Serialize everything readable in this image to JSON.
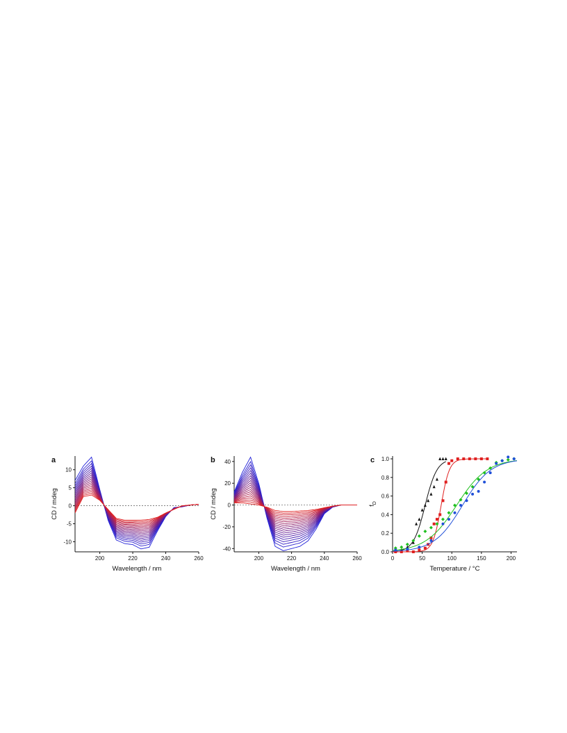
{
  "chart_data": [
    {
      "panel": "a",
      "type": "line",
      "xlabel": "Wavelength / nm",
      "ylabel": "CD / mdeg",
      "xlim": [
        185,
        260
      ],
      "ylim": [
        -12.8,
        13.8
      ],
      "xticks": [
        200,
        220,
        240,
        260
      ],
      "yticks": [
        -10,
        -5,
        0,
        5,
        10
      ],
      "zero_line": true,
      "series_count": 19,
      "color_start": "#2020d8",
      "color_end": "#e02020",
      "spectrum_first": {
        "x": [
          185,
          190,
          195,
          200,
          205,
          210,
          215,
          220,
          225,
          230,
          235,
          240,
          245,
          250,
          255,
          260
        ],
        "y": [
          7,
          11,
          13.5,
          4.5,
          -4,
          -9.5,
          -10.5,
          -10.8,
          -12,
          -11.5,
          -7,
          -3,
          -0.5,
          -0.3,
          0.2,
          0.4
        ]
      },
      "spectrum_last": {
        "x": [
          185,
          190,
          195,
          200,
          205,
          210,
          215,
          220,
          225,
          230,
          235,
          240,
          245,
          250,
          255,
          260
        ],
        "y": [
          -2,
          2.5,
          3,
          1.5,
          -1,
          -3.5,
          -4,
          -4,
          -4,
          -3.8,
          -3.2,
          -2,
          -1,
          0,
          0.2,
          0.4
        ]
      }
    },
    {
      "panel": "b",
      "type": "line",
      "xlabel": "Wavelength / nm",
      "ylabel": "CD / mdeg",
      "xlim": [
        185,
        260
      ],
      "ylim": [
        -43,
        45
      ],
      "xticks": [
        200,
        220,
        240,
        260
      ],
      "yticks": [
        -40,
        -20,
        0,
        20,
        40
      ],
      "zero_line": true,
      "series_count": 20,
      "color_start": "#2020d8",
      "color_end": "#e02020",
      "spectrum_first": {
        "x": [
          185,
          190,
          195,
          200,
          205,
          210,
          215,
          220,
          225,
          230,
          235,
          240,
          245,
          250,
          255,
          260
        ],
        "y": [
          12,
          30,
          44,
          20,
          -12,
          -38,
          -42,
          -40,
          -38,
          -33,
          -22,
          -8,
          -2,
          0,
          0,
          0
        ]
      },
      "spectrum_last": {
        "x": [
          185,
          190,
          195,
          200,
          205,
          210,
          215,
          220,
          225,
          230,
          235,
          240,
          245,
          250,
          255,
          260
        ],
        "y": [
          2,
          2,
          1,
          0,
          -2,
          -5,
          -6,
          -6,
          -5.5,
          -5,
          -4,
          -2.5,
          -1,
          0,
          0,
          0
        ]
      }
    },
    {
      "panel": "c",
      "type": "scatter",
      "xlabel": "Temperature / °C",
      "ylabel": "f",
      "ylabel_sub": "D",
      "xlim": [
        0,
        210
      ],
      "ylim": [
        0,
        1.03
      ],
      "xticks": [
        0,
        50,
        100,
        150,
        200
      ],
      "yticks": [
        0.0,
        0.2,
        0.4,
        0.6,
        0.8,
        1.0
      ],
      "series": [
        {
          "color": "#111111",
          "marker": "triangle",
          "fit": {
            "tm": 55,
            "width": 10,
            "x_range": [
              0,
              90
            ]
          },
          "x": [
            5,
            15,
            25,
            35,
            40,
            45,
            50,
            55,
            60,
            65,
            70,
            75,
            80,
            85,
            90
          ],
          "y": [
            0.01,
            0.02,
            0.05,
            0.1,
            0.3,
            0.35,
            0.45,
            0.5,
            0.55,
            0.62,
            0.7,
            0.78,
            1.0,
            1.0,
            1.0
          ]
        },
        {
          "color": "#e02020",
          "marker": "square",
          "fit": {
            "tm": 82,
            "width": 7,
            "x_range": [
              0,
              160
            ]
          },
          "x": [
            5,
            15,
            25,
            35,
            45,
            55,
            60,
            65,
            70,
            75,
            80,
            85,
            90,
            95,
            100,
            110,
            120,
            130,
            140,
            150,
            160
          ],
          "y": [
            0.0,
            0.0,
            0.01,
            0.0,
            0.02,
            0.04,
            0.08,
            0.15,
            0.3,
            0.35,
            0.4,
            0.55,
            0.75,
            0.95,
            0.98,
            1.0,
            1.0,
            1.0,
            1.0,
            1.0,
            1.0
          ]
        },
        {
          "color": "#20c020",
          "marker": "diamond",
          "fit": {
            "tm": 108,
            "width": 26,
            "x_range": [
              0,
              210
            ]
          },
          "x": [
            5,
            15,
            25,
            35,
            45,
            55,
            65,
            75,
            85,
            95,
            105,
            115,
            125,
            135,
            145,
            155,
            165,
            175,
            185,
            195,
            205
          ],
          "y": [
            0.04,
            0.05,
            0.08,
            0.12,
            0.17,
            0.22,
            0.26,
            0.3,
            0.35,
            0.42,
            0.5,
            0.56,
            0.63,
            0.7,
            0.78,
            0.85,
            0.9,
            0.96,
            0.98,
            0.99,
            1.0
          ]
        },
        {
          "color": "#2050d8",
          "marker": "circle",
          "fit": {
            "tm": 118,
            "width": 24,
            "x_range": [
              0,
              210
            ]
          },
          "x": [
            5,
            25,
            45,
            65,
            85,
            95,
            105,
            115,
            125,
            135,
            145,
            155,
            165,
            175,
            185,
            195,
            205
          ],
          "y": [
            0.02,
            0.03,
            0.05,
            0.12,
            0.3,
            0.35,
            0.42,
            0.5,
            0.55,
            0.62,
            0.65,
            0.75,
            0.85,
            0.95,
            0.98,
            1.02,
            1.0
          ]
        }
      ]
    }
  ]
}
